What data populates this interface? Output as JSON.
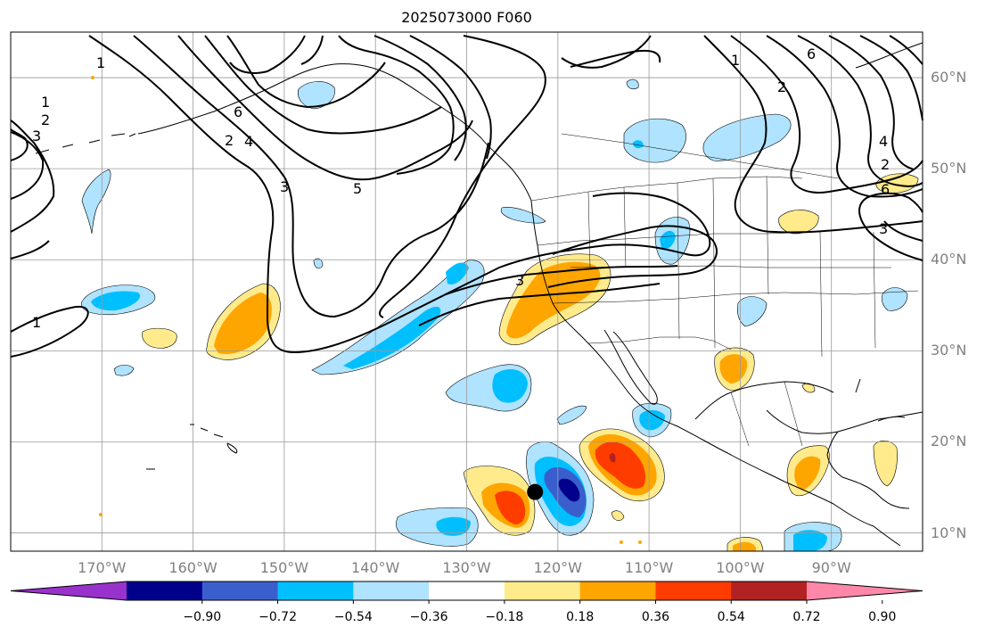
{
  "map": {
    "title": "2025073000 F060",
    "lat_labels": [
      {
        "text": "60°N",
        "lat": 60
      },
      {
        "text": "50°N",
        "lat": 50
      },
      {
        "text": "40°N",
        "lat": 40
      },
      {
        "text": "30°N",
        "lat": 30
      },
      {
        "text": "20°N",
        "lat": 20
      },
      {
        "text": "10°N",
        "lat": 10
      }
    ],
    "lon_labels": [
      {
        "text": "170°W",
        "lon": -170
      },
      {
        "text": "160°W",
        "lon": -160
      },
      {
        "text": "150°W",
        "lon": -150
      },
      {
        "text": "140°W",
        "lon": -140
      },
      {
        "text": "130°W",
        "lon": -130
      },
      {
        "text": "120°W",
        "lon": -120
      },
      {
        "text": "110°W",
        "lon": -110
      },
      {
        "text": "100°W",
        "lon": -100
      },
      {
        "text": "90°W",
        "lon": -90
      }
    ],
    "extent": {
      "lon_min": -180,
      "lon_max": -80,
      "lat_min": 8,
      "lat_max": 65
    },
    "contour_labels": [
      "1",
      "2",
      "3",
      "4",
      "5",
      "6"
    ],
    "marker": {
      "lon": -122.5,
      "lat": 14.5,
      "color": "#000000"
    }
  },
  "colorbar": {
    "ticks": [
      "−0.90",
      "−0.72",
      "−0.54",
      "−0.36",
      "−0.18",
      "0.18",
      "0.36",
      "0.54",
      "0.72",
      "0.90"
    ],
    "colors": [
      "#9932cc",
      "#00008b",
      "#3a5fcd",
      "#00bfff",
      "#afe3ff",
      "#ffffff",
      "#ffeb8c",
      "#ffa500",
      "#ff3c00",
      "#b22222",
      "#ff88aa"
    ]
  }
}
